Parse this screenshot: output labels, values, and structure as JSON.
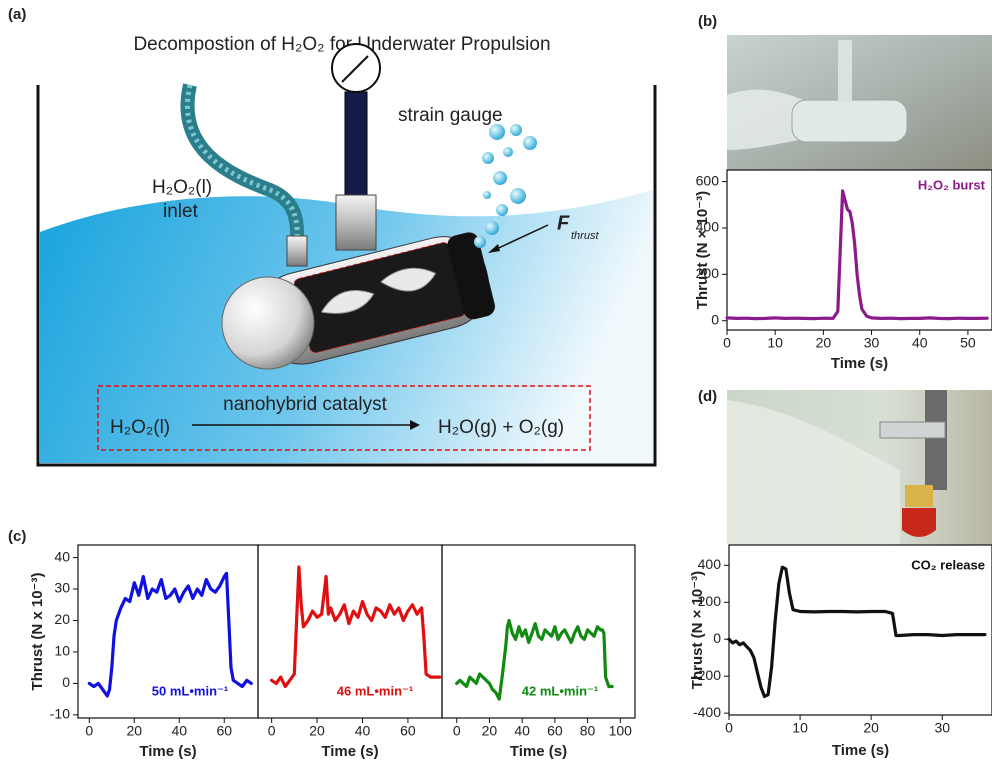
{
  "diagram": {
    "panel_label": "(a)",
    "title": "Decompostion of H₂O₂ for Underwater Propulsion",
    "gauge_label": "strain gauge",
    "inlet_formula": "H₂O₂(l)",
    "inlet_label": "inlet",
    "thrust_symbol": "F",
    "thrust_subscript": "thrust",
    "reactant": "H₂O₂(l)",
    "catalyst": "nanohybrid catalyst",
    "products": "H₂O(g) + O₂(g)"
  },
  "chart_data": [
    {
      "type": "line",
      "panel_label": "(b)",
      "annotation": "H₂O₂ burst",
      "x_label": "Time (s)",
      "y_label": "Thrust (N × 10⁻³)",
      "xlim": [
        0,
        55
      ],
      "xticks": [
        0,
        10,
        20,
        30,
        40,
        50
      ],
      "ylim": [
        -40,
        650
      ],
      "yticks": [
        0,
        200,
        400,
        600
      ],
      "x": [
        0,
        2,
        4,
        6,
        8,
        10,
        12,
        14,
        16,
        18,
        20,
        22,
        23,
        23.5,
        24,
        24.5,
        25,
        25.5,
        26,
        26.5,
        27,
        27.5,
        28,
        29,
        30,
        32,
        34,
        36,
        38,
        40,
        42,
        44,
        46,
        48,
        50,
        52,
        54
      ],
      "series": [
        {
          "color": "#8b1a8b",
          "values": [
            12,
            10,
            11,
            9,
            10,
            12,
            10,
            11,
            10,
            9,
            11,
            10,
            40,
            300,
            560,
            520,
            480,
            470,
            420,
            330,
            200,
            110,
            50,
            20,
            12,
            10,
            11,
            9,
            10,
            10,
            12,
            10,
            9,
            11,
            10,
            10,
            11
          ]
        }
      ]
    },
    {
      "type": "line",
      "panel_label": "(c)",
      "annotation": "50 mL•min⁻¹",
      "x_label": "Time (s)",
      "y_label": "Thrust (N x 10⁻³)",
      "xlim": [
        -5,
        75
      ],
      "xticks": [
        0,
        20,
        40,
        60
      ],
      "ylim": [
        -11,
        44
      ],
      "yticks": [
        -10,
        0,
        10,
        20,
        30,
        40
      ],
      "x": [
        0,
        2,
        4,
        6,
        8,
        9,
        10,
        11,
        12,
        14,
        16,
        18,
        20,
        22,
        24,
        26,
        28,
        30,
        32,
        34,
        36,
        38,
        40,
        42,
        44,
        46,
        48,
        50,
        52,
        54,
        56,
        58,
        60,
        61,
        62,
        63,
        64,
        66,
        68,
        70,
        72
      ],
      "series": [
        {
          "color": "#1010e0",
          "values": [
            0,
            -1,
            0,
            -2,
            -4,
            -2,
            5,
            15,
            20,
            24,
            27,
            26,
            32,
            28,
            34,
            27,
            30,
            29,
            33,
            27,
            28,
            30,
            26,
            29,
            31,
            27,
            30,
            28,
            33,
            30,
            29,
            31,
            34,
            35,
            20,
            5,
            1,
            0,
            -1,
            1,
            0
          ]
        }
      ]
    },
    {
      "type": "line",
      "annotation": "46 mL•min⁻¹",
      "x_label": "Time (s)",
      "xlim": [
        -6,
        75
      ],
      "xticks": [
        0,
        20,
        40,
        60
      ],
      "ylim": [
        -11,
        44
      ],
      "x": [
        0,
        2,
        4,
        6,
        8,
        10,
        11,
        12,
        13,
        14,
        16,
        18,
        20,
        22,
        23,
        24,
        25,
        26,
        28,
        30,
        32,
        34,
        36,
        38,
        40,
        42,
        44,
        46,
        48,
        50,
        52,
        54,
        56,
        58,
        60,
        62,
        64,
        66,
        67,
        68,
        70,
        72,
        74
      ],
      "series": [
        {
          "color": "#e01010",
          "values": [
            1,
            0,
            2,
            -1,
            1,
            3,
            20,
            37,
            25,
            18,
            20,
            23,
            21,
            22,
            28,
            34,
            22,
            24,
            20,
            22,
            25,
            19,
            23,
            21,
            26,
            22,
            20,
            24,
            23,
            21,
            25,
            22,
            24,
            20,
            23,
            25,
            22,
            24,
            15,
            3,
            2,
            2,
            2
          ]
        }
      ]
    },
    {
      "type": "line",
      "annotation": "42 mL•min⁻¹",
      "x_label": "Time (s)",
      "xlim": [
        -9,
        109
      ],
      "xticks": [
        0,
        20,
        40,
        60,
        80,
        100
      ],
      "ylim": [
        -11,
        44
      ],
      "x": [
        0,
        2,
        4,
        6,
        8,
        10,
        12,
        14,
        16,
        18,
        20,
        22,
        24,
        26,
        28,
        30,
        31,
        32,
        34,
        36,
        38,
        40,
        42,
        44,
        46,
        48,
        50,
        52,
        54,
        56,
        58,
        60,
        62,
        64,
        66,
        68,
        70,
        72,
        74,
        76,
        78,
        80,
        82,
        84,
        86,
        88,
        89,
        90,
        91,
        93,
        95
      ],
      "series": [
        {
          "color": "#108a10",
          "values": [
            0,
            1,
            0,
            -1,
            2,
            1,
            0,
            3,
            2,
            1,
            0,
            -2,
            -3,
            -5,
            3,
            12,
            18,
            20,
            16,
            14,
            18,
            15,
            17,
            13,
            16,
            19,
            15,
            14,
            17,
            16,
            15,
            18,
            14,
            16,
            17,
            15,
            13,
            16,
            18,
            15,
            14,
            17,
            16,
            15,
            18,
            17,
            17,
            16,
            2,
            -1,
            -1
          ]
        }
      ]
    },
    {
      "type": "line",
      "panel_label": "(d)",
      "annotation": "CO₂ release",
      "x_label": "Time (s)",
      "y_label": "Thrust (N × 10⁻³)",
      "xlim": [
        0,
        37
      ],
      "xticks": [
        0,
        10,
        20,
        30
      ],
      "ylim": [
        -410,
        510
      ],
      "yticks": [
        -400,
        -200,
        0,
        200,
        400
      ],
      "x": [
        0,
        0.5,
        1,
        1.5,
        2,
        2.5,
        3,
        3.5,
        4,
        4.5,
        5,
        5.5,
        6,
        6.5,
        7,
        7.5,
        8,
        8.5,
        9,
        10,
        12,
        14,
        16,
        18,
        20,
        22,
        23,
        23.5,
        24,
        26,
        28,
        30,
        32,
        34,
        36
      ],
      "series": [
        {
          "color": "#111111",
          "values": [
            0,
            -20,
            -10,
            -30,
            -20,
            -40,
            -60,
            -100,
            -180,
            -260,
            -310,
            -300,
            -150,
            100,
            300,
            390,
            380,
            250,
            160,
            150,
            148,
            150,
            150,
            148,
            150,
            150,
            140,
            20,
            20,
            25,
            25,
            20,
            25,
            25,
            25
          ]
        }
      ]
    }
  ]
}
